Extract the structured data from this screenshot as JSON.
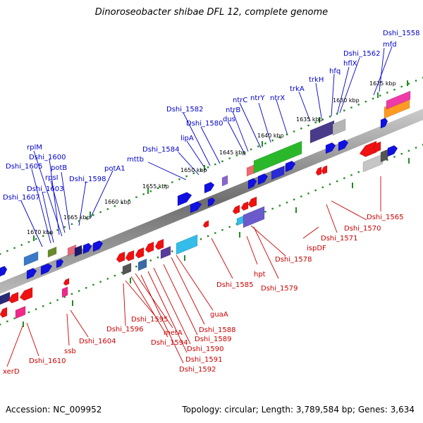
{
  "title": "Dinoroseobacter shibae DFL 12, complete genome",
  "footer": {
    "accession": "Accession: NC_009952",
    "stats": "Topology: circular; Length: 3,789,584 bp; Genes: 3,634"
  },
  "colors": {
    "forward_label": "#0000cc",
    "reverse_label": "#cc0000",
    "forward_gene": "#1010e0",
    "reverse_gene": "#ee1111",
    "backbone": "#888888",
    "tick": "#228b22"
  },
  "scale": {
    "ticks": [
      "1670 kbp",
      "1665 kbp",
      "1660 kbp",
      "1655 kbp",
      "1650 kbp",
      "1645 kbp",
      "1640 kbp",
      "1635 kbp",
      "1630 kbp",
      "1625 kbp"
    ]
  },
  "forward_labels": [
    "Dshi_1558",
    "mfd",
    "Dshi_1562",
    "hflX",
    "hfq",
    "trkH",
    "trkA",
    "ntrX",
    "ntrY",
    "ntrC",
    "ntrB",
    "dus",
    "Dshi_1580",
    "Dshi_1582",
    "lipA",
    "Dshi_1584",
    "mttb",
    "potA1",
    "Dshi_1598",
    "potB",
    "rpsI",
    "rplM",
    "Dshi_1600",
    "Dshi_1605",
    "Dshi_1603",
    "Dshi_1607"
  ],
  "reverse_labels": [
    "Dshi_1565",
    "Dshi_1570",
    "Dshi_1571",
    "ispDF",
    "Dshi_1578",
    "Dshi_1579",
    "hpt",
    "Dshi_1585",
    "guaA",
    "Dshi_1588",
    "Dshi_1589",
    "Dshi_1590",
    "Dshi_1591",
    "Dshi_1592",
    "metA",
    "Dshi_1594",
    "Dshi_1595",
    "Dshi_1596",
    "Dshi_1604",
    "ssb",
    "Dshi_1610",
    "xerD"
  ]
}
